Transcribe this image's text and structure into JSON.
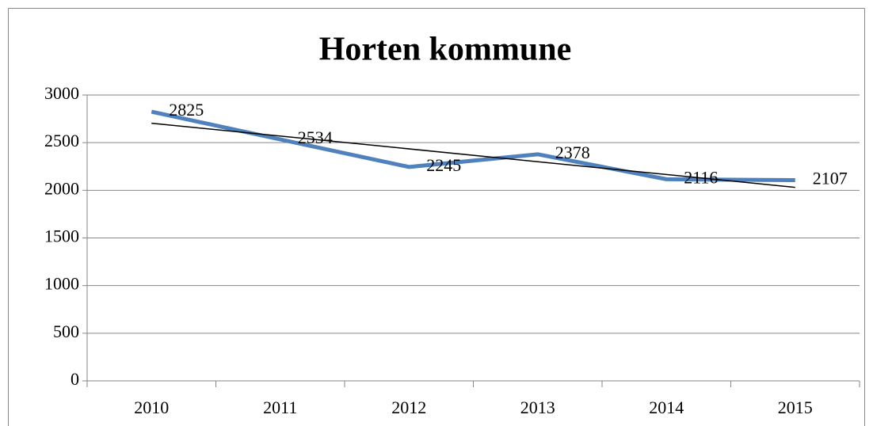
{
  "chart_data": {
    "type": "line",
    "title": "Horten kommune",
    "categories": [
      "2010",
      "2011",
      "2012",
      "2013",
      "2014",
      "2015"
    ],
    "values": [
      2825,
      2534,
      2245,
      2378,
      2116,
      2107
    ],
    "color": "#4f81bd",
    "ylim": [
      0,
      3000
    ],
    "yticks": [
      0,
      500,
      1000,
      1500,
      2000,
      2500,
      3000
    ],
    "grid": true,
    "trendline": "linear",
    "data_labels": true
  }
}
